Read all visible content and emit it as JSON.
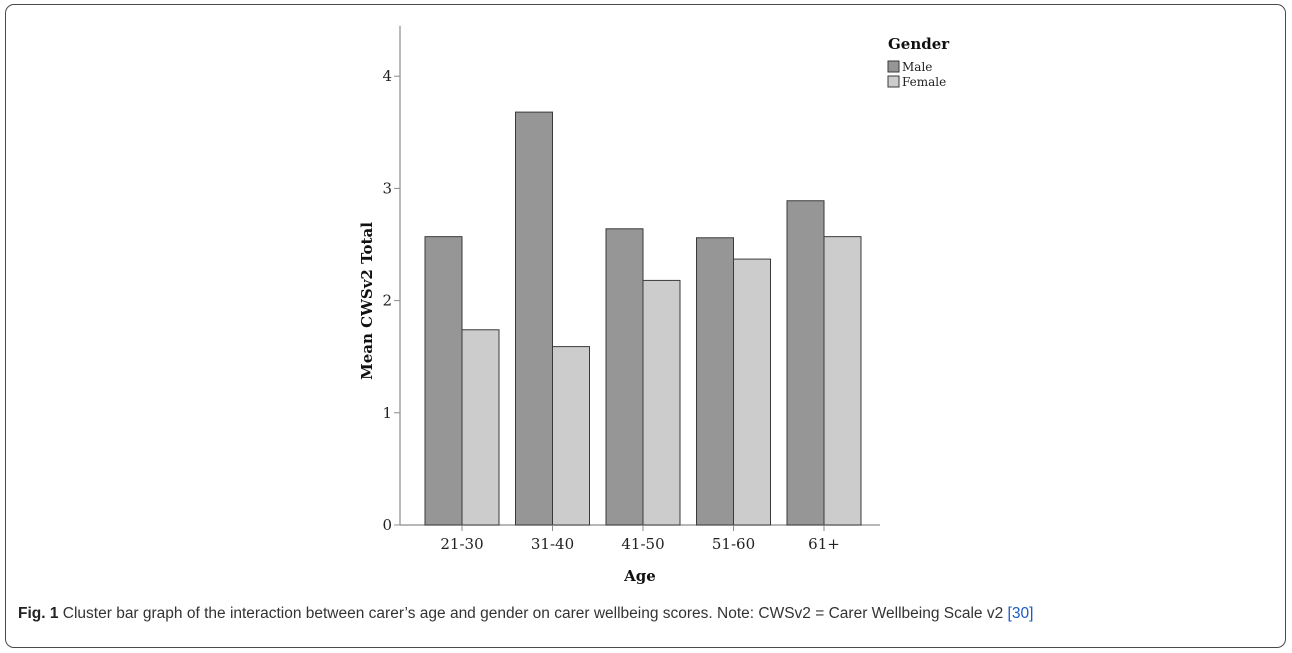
{
  "chart_data": {
    "type": "bar",
    "xlabel": "Age",
    "ylabel": "Mean CWSv2 Total",
    "categories": [
      "21-30",
      "31-40",
      "41-50",
      "51-60",
      "61+"
    ],
    "series": [
      {
        "name": "Male",
        "values": [
          2.57,
          3.68,
          2.64,
          2.56,
          2.89
        ]
      },
      {
        "name": "Female",
        "values": [
          1.74,
          1.59,
          2.18,
          2.37,
          2.57
        ]
      }
    ],
    "ylim": [
      0,
      4.45
    ],
    "yticks": [
      "0",
      "1",
      "2",
      "3",
      "4"
    ],
    "legend": {
      "title": "Gender",
      "position": "top-right"
    },
    "grid": false,
    "colors": {
      "Male": "#969696",
      "Female": "#cccccc",
      "outline": "#3a3a3a",
      "axis": "#8c8c8c"
    }
  },
  "caption": {
    "label": "Fig. 1",
    "text_before_ref": " Cluster bar graph of the interaction between carer’s age and gender on carer wellbeing scores. Note: CWSv2 = Carer Wellbeing Scale v2 ",
    "ref": "[30]"
  }
}
